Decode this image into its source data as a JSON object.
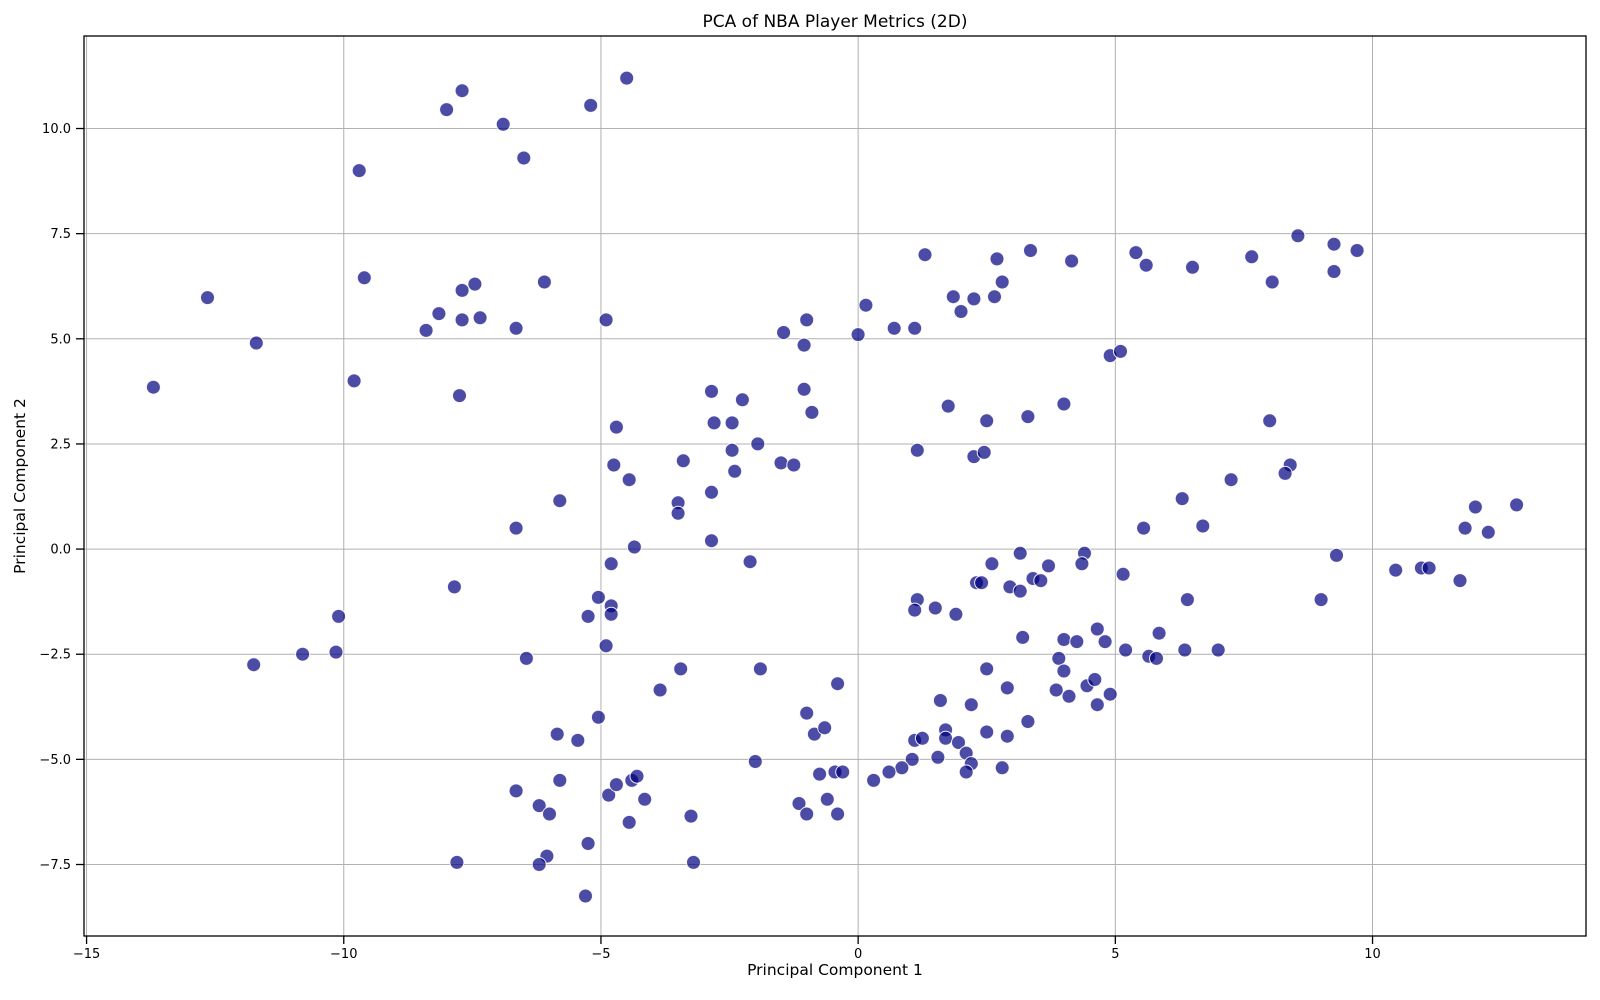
{
  "chart_data": {
    "type": "scatter",
    "title": "PCA of NBA Player Metrics (2D)",
    "xlabel": "Principal Component 1",
    "ylabel": "Principal Component 2",
    "xlim": [
      -15.05,
      14.15
    ],
    "ylim": [
      -9.2,
      12.2
    ],
    "x_ticks": [
      -15,
      -10,
      -5,
      0,
      5,
      10
    ],
    "x_tick_labels": [
      "−15",
      "−10",
      "−5",
      "0",
      "5",
      "10"
    ],
    "y_ticks": [
      -7.5,
      -5.0,
      -2.5,
      0.0,
      2.5,
      5.0,
      7.5,
      10.0
    ],
    "y_tick_labels": [
      "−7.5",
      "−5.0",
      "−2.5",
      "0.0",
      "2.5",
      "5.0",
      "7.5",
      "10.0"
    ],
    "grid": true,
    "legend_position": "none",
    "marker": {
      "color": "#000080",
      "opacity": 0.7,
      "edge_color": "#ffffff",
      "edge_width": 1,
      "radius": 7
    },
    "grid_color": "#b0b0b0",
    "spine_color": "#000000",
    "points": [
      [
        -7.7,
        10.9
      ],
      [
        -8.0,
        10.45
      ],
      [
        -9.7,
        9.0
      ],
      [
        -12.65,
        5.98
      ],
      [
        -9.6,
        6.45
      ],
      [
        -8.15,
        5.6
      ],
      [
        -8.4,
        5.2
      ],
      [
        -4.5,
        11.2
      ],
      [
        -5.2,
        10.55
      ],
      [
        -6.9,
        10.1
      ],
      [
        -6.5,
        9.3
      ],
      [
        -6.1,
        6.35
      ],
      [
        -7.45,
        6.3
      ],
      [
        -7.7,
        6.15
      ],
      [
        -7.35,
        5.5
      ],
      [
        -7.7,
        5.45
      ],
      [
        -6.65,
        5.25
      ],
      [
        -4.9,
        5.45
      ],
      [
        -11.7,
        4.9
      ],
      [
        -13.7,
        3.85
      ],
      [
        -9.8,
        4.0
      ],
      [
        -7.75,
        3.65
      ],
      [
        -7.85,
        -0.9
      ],
      [
        -10.1,
        -1.6
      ],
      [
        -1.45,
        5.15
      ],
      [
        -1.05,
        4.85
      ],
      [
        -2.85,
        3.75
      ],
      [
        -2.25,
        3.55
      ],
      [
        -1.05,
        3.8
      ],
      [
        -0.9,
        3.25
      ],
      [
        -4.7,
        2.9
      ],
      [
        -2.8,
        3.0
      ],
      [
        -2.45,
        3.0
      ],
      [
        -1.95,
        2.5
      ],
      [
        -2.45,
        2.35
      ],
      [
        -3.4,
        2.1
      ],
      [
        -2.4,
        1.85
      ],
      [
        -1.5,
        2.05
      ],
      [
        -1.25,
        2.0
      ],
      [
        -4.75,
        2.0
      ],
      [
        -4.45,
        1.65
      ],
      [
        -5.8,
        1.15
      ],
      [
        -6.65,
        0.5
      ],
      [
        -2.85,
        1.35
      ],
      [
        -3.5,
        1.1
      ],
      [
        -3.5,
        0.85
      ],
      [
        -4.35,
        0.05
      ],
      [
        -2.85,
        0.2
      ],
      [
        -4.8,
        -0.35
      ],
      [
        -2.1,
        -0.3
      ],
      [
        -5.05,
        -1.15
      ],
      [
        -4.8,
        -1.35
      ],
      [
        -4.8,
        -1.55
      ],
      [
        -5.25,
        -1.6
      ],
      [
        1.3,
        7.0
      ],
      [
        2.7,
        6.9
      ],
      [
        3.35,
        7.1
      ],
      [
        4.15,
        6.85
      ],
      [
        5.4,
        7.05
      ],
      [
        5.6,
        6.75
      ],
      [
        6.5,
        6.7
      ],
      [
        0.15,
        5.8
      ],
      [
        1.85,
        6.0
      ],
      [
        2.25,
        5.95
      ],
      [
        2.65,
        6.0
      ],
      [
        2.8,
        6.35
      ],
      [
        2.0,
        5.65
      ],
      [
        0.7,
        5.25
      ],
      [
        1.1,
        5.25
      ],
      [
        0.0,
        5.1
      ],
      [
        -1.0,
        5.45
      ],
      [
        8.55,
        7.45
      ],
      [
        7.65,
        6.95
      ],
      [
        8.05,
        6.35
      ],
      [
        9.25,
        7.25
      ],
      [
        9.7,
        7.1
      ],
      [
        9.25,
        6.6
      ],
      [
        4.9,
        4.6
      ],
      [
        5.1,
        4.7
      ],
      [
        1.75,
        3.4
      ],
      [
        2.5,
        3.05
      ],
      [
        3.3,
        3.15
      ],
      [
        4.0,
        3.45
      ],
      [
        1.15,
        2.35
      ],
      [
        2.25,
        2.2
      ],
      [
        2.45,
        2.3
      ],
      [
        6.3,
        1.2
      ],
      [
        5.55,
        0.5
      ],
      [
        6.7,
        0.55
      ],
      [
        3.15,
        -0.1
      ],
      [
        4.4,
        -0.1
      ],
      [
        4.35,
        -0.35
      ],
      [
        2.6,
        -0.35
      ],
      [
        3.7,
        -0.4
      ],
      [
        2.3,
        -0.8
      ],
      [
        2.4,
        -0.8
      ],
      [
        3.4,
        -0.7
      ],
      [
        3.55,
        -0.75
      ],
      [
        2.95,
        -0.9
      ],
      [
        3.15,
        -1.0
      ],
      [
        5.15,
        -0.6
      ],
      [
        1.15,
        -1.2
      ],
      [
        1.1,
        -1.45
      ],
      [
        1.5,
        -1.4
      ],
      [
        1.9,
        -1.55
      ],
      [
        6.4,
        -1.2
      ],
      [
        4.65,
        -1.9
      ],
      [
        5.85,
        -2.0
      ],
      [
        8.0,
        3.05
      ],
      [
        8.4,
        2.0
      ],
      [
        8.3,
        1.8
      ],
      [
        7.25,
        1.65
      ],
      [
        12.0,
        1.0
      ],
      [
        12.8,
        1.05
      ],
      [
        11.8,
        0.5
      ],
      [
        12.25,
        0.4
      ],
      [
        9.3,
        -0.15
      ],
      [
        10.45,
        -0.5
      ],
      [
        10.95,
        -0.45
      ],
      [
        11.1,
        -0.45
      ],
      [
        11.7,
        -0.75
      ],
      [
        9.0,
        -1.2
      ],
      [
        -11.75,
        -2.75
      ],
      [
        -10.8,
        -2.5
      ],
      [
        -10.15,
        -2.45
      ],
      [
        -7.8,
        -7.45
      ],
      [
        -4.9,
        -2.3
      ],
      [
        -6.45,
        -2.6
      ],
      [
        -3.45,
        -2.85
      ],
      [
        -1.9,
        -2.85
      ],
      [
        -3.85,
        -3.35
      ],
      [
        -0.4,
        -3.2
      ],
      [
        -5.05,
        -4.0
      ],
      [
        -5.85,
        -4.4
      ],
      [
        -5.45,
        -4.55
      ],
      [
        -1.0,
        -3.9
      ],
      [
        -0.85,
        -4.4
      ],
      [
        -0.65,
        -4.25
      ],
      [
        -2.0,
        -5.05
      ],
      [
        -5.8,
        -5.5
      ],
      [
        -6.65,
        -5.75
      ],
      [
        -6.2,
        -6.1
      ],
      [
        -6.0,
        -6.3
      ],
      [
        -4.85,
        -5.85
      ],
      [
        -4.7,
        -5.6
      ],
      [
        -4.4,
        -5.5
      ],
      [
        -4.3,
        -5.4
      ],
      [
        -4.15,
        -5.95
      ],
      [
        -4.45,
        -6.5
      ],
      [
        -3.25,
        -6.35
      ],
      [
        -3.2,
        -7.45
      ],
      [
        -5.25,
        -7.0
      ],
      [
        -5.3,
        -8.25
      ],
      [
        -6.05,
        -7.3
      ],
      [
        -6.2,
        -7.5
      ],
      [
        -0.75,
        -5.35
      ],
      [
        -0.45,
        -5.3
      ],
      [
        -0.3,
        -5.3
      ],
      [
        -0.6,
        -5.95
      ],
      [
        -1.15,
        -6.05
      ],
      [
        -1.0,
        -6.3
      ],
      [
        -0.4,
        -6.3
      ],
      [
        3.2,
        -2.1
      ],
      [
        4.0,
        -2.15
      ],
      [
        4.25,
        -2.2
      ],
      [
        4.8,
        -2.2
      ],
      [
        5.2,
        -2.4
      ],
      [
        5.65,
        -2.55
      ],
      [
        5.8,
        -2.6
      ],
      [
        6.35,
        -2.4
      ],
      [
        7.0,
        -2.4
      ],
      [
        2.5,
        -2.85
      ],
      [
        3.9,
        -2.6
      ],
      [
        4.0,
        -2.9
      ],
      [
        2.9,
        -3.3
      ],
      [
        3.85,
        -3.35
      ],
      [
        4.1,
        -3.5
      ],
      [
        4.45,
        -3.25
      ],
      [
        4.6,
        -3.1
      ],
      [
        4.9,
        -3.45
      ],
      [
        4.65,
        -3.7
      ],
      [
        1.6,
        -3.6
      ],
      [
        2.2,
        -3.7
      ],
      [
        3.3,
        -4.1
      ],
      [
        2.5,
        -4.35
      ],
      [
        2.9,
        -4.45
      ],
      [
        1.7,
        -4.3
      ],
      [
        1.7,
        -4.5
      ],
      [
        1.1,
        -4.55
      ],
      [
        1.25,
        -4.5
      ],
      [
        1.95,
        -4.6
      ],
      [
        1.55,
        -4.95
      ],
      [
        2.1,
        -4.85
      ],
      [
        1.05,
        -5.0
      ],
      [
        0.85,
        -5.2
      ],
      [
        0.6,
        -5.3
      ],
      [
        0.3,
        -5.5
      ],
      [
        2.2,
        -5.1
      ],
      [
        2.1,
        -5.3
      ],
      [
        2.8,
        -5.2
      ]
    ]
  }
}
